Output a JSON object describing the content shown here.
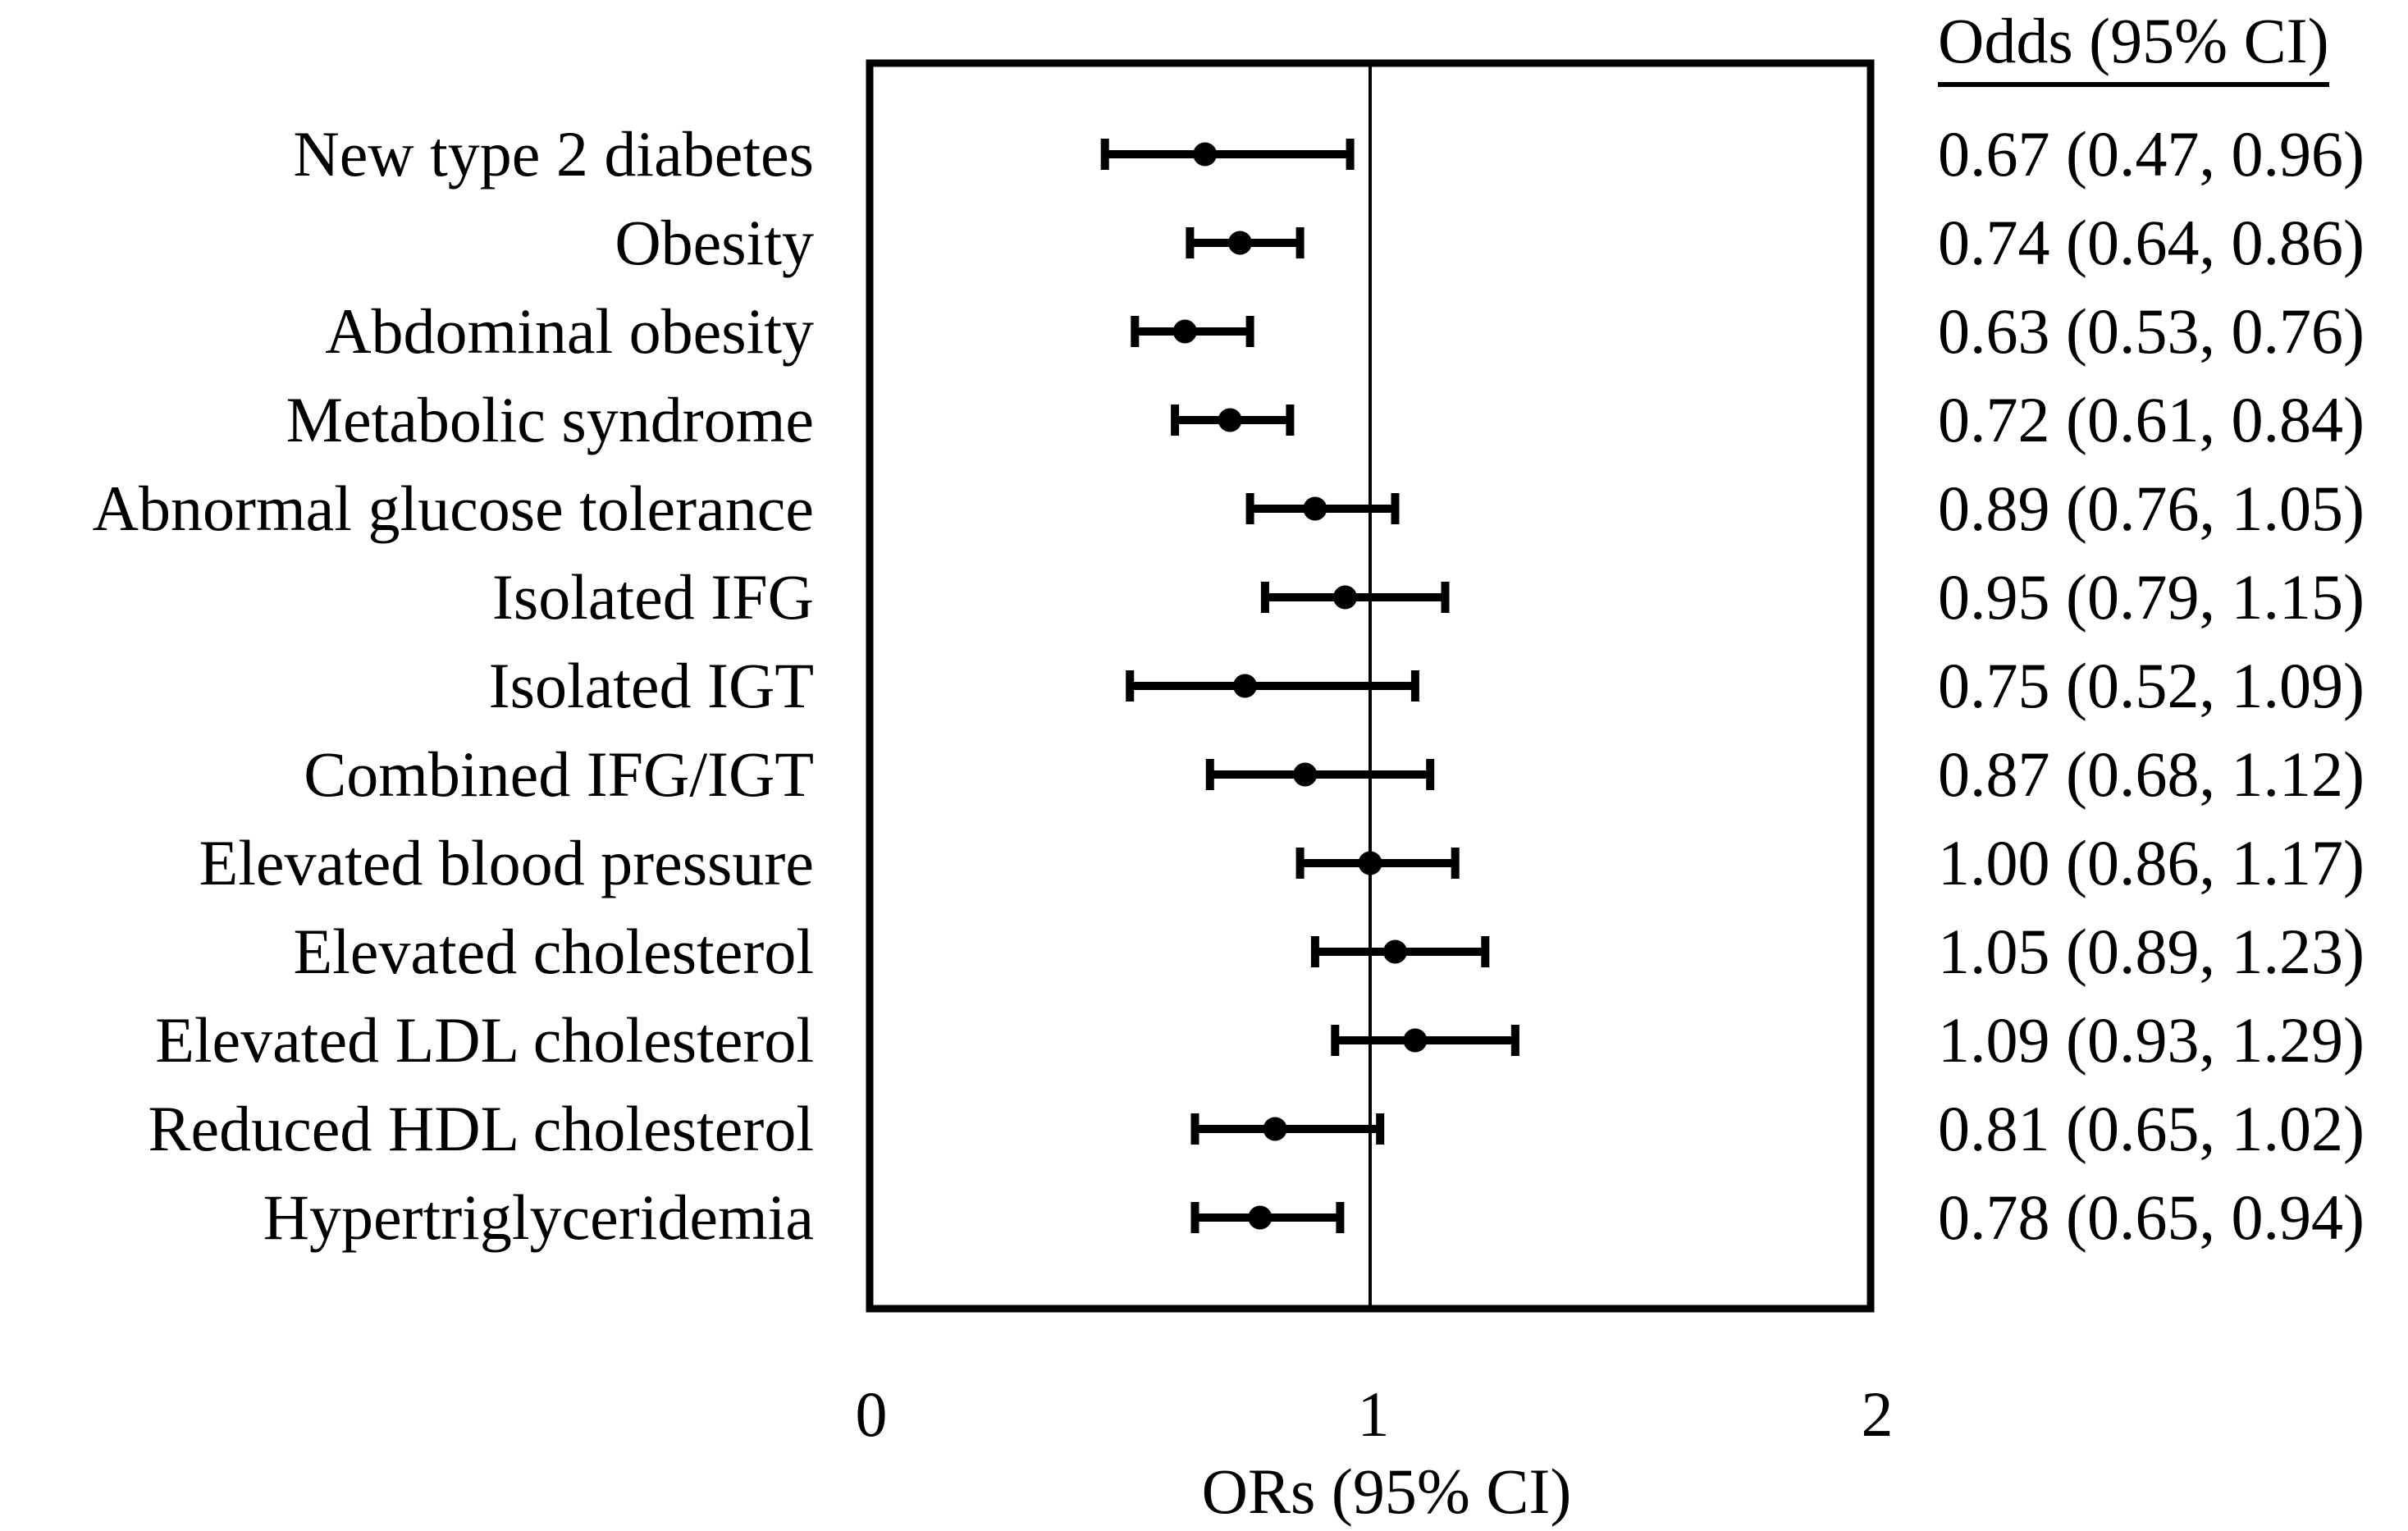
{
  "figure": {
    "background": "#ffffff",
    "ink": "#000000"
  },
  "table": {
    "header": "Odds (95% CI)"
  },
  "chart_data": {
    "type": "forest",
    "title": "",
    "xlabel": "ORs (95% CI)",
    "xlim": [
      0,
      2
    ],
    "x_tick_labels": [
      "0",
      "1",
      "2"
    ],
    "x_tick_values": [
      0,
      1,
      2
    ],
    "reference_line_x": 1,
    "grid": false,
    "legend": null,
    "rows": [
      {
        "label": "New type 2 diabetes",
        "or": 0.67,
        "ci_low": 0.47,
        "ci_high": 0.96,
        "display": "0.67 (0.47, 0.96)"
      },
      {
        "label": "Obesity",
        "or": 0.74,
        "ci_low": 0.64,
        "ci_high": 0.86,
        "display": "0.74 (0.64, 0.86)"
      },
      {
        "label": "Abdominal obesity",
        "or": 0.63,
        "ci_low": 0.53,
        "ci_high": 0.76,
        "display": "0.63 (0.53, 0.76)"
      },
      {
        "label": "Metabolic syndrome",
        "or": 0.72,
        "ci_low": 0.61,
        "ci_high": 0.84,
        "display": "0.72 (0.61, 0.84)"
      },
      {
        "label": "Abnormal glucose tolerance",
        "or": 0.89,
        "ci_low": 0.76,
        "ci_high": 1.05,
        "display": "0.89 (0.76, 1.05)"
      },
      {
        "label": "Isolated IFG",
        "or": 0.95,
        "ci_low": 0.79,
        "ci_high": 1.15,
        "display": "0.95 (0.79, 1.15)"
      },
      {
        "label": "Isolated IGT",
        "or": 0.75,
        "ci_low": 0.52,
        "ci_high": 1.09,
        "display": "0.75 (0.52, 1.09)"
      },
      {
        "label": "Combined IFG/IGT",
        "or": 0.87,
        "ci_low": 0.68,
        "ci_high": 1.12,
        "display": "0.87 (0.68, 1.12)"
      },
      {
        "label": "Elevated blood pressure",
        "or": 1.0,
        "ci_low": 0.86,
        "ci_high": 1.17,
        "display": "1.00 (0.86, 1.17)"
      },
      {
        "label": "Elevated cholesterol",
        "or": 1.05,
        "ci_low": 0.89,
        "ci_high": 1.23,
        "display": "1.05 (0.89, 1.23)"
      },
      {
        "label": "Elevated LDL cholesterol",
        "or": 1.09,
        "ci_low": 0.93,
        "ci_high": 1.29,
        "display": "1.09 (0.93, 1.29)"
      },
      {
        "label": "Reduced HDL cholesterol",
        "or": 0.81,
        "ci_low": 0.65,
        "ci_high": 1.02,
        "display": "0.81 (0.65, 1.02)"
      },
      {
        "label": "Hypertriglyceridemia",
        "or": 0.78,
        "ci_low": 0.65,
        "ci_high": 0.94,
        "display": "0.78 (0.65, 0.94)"
      }
    ]
  }
}
